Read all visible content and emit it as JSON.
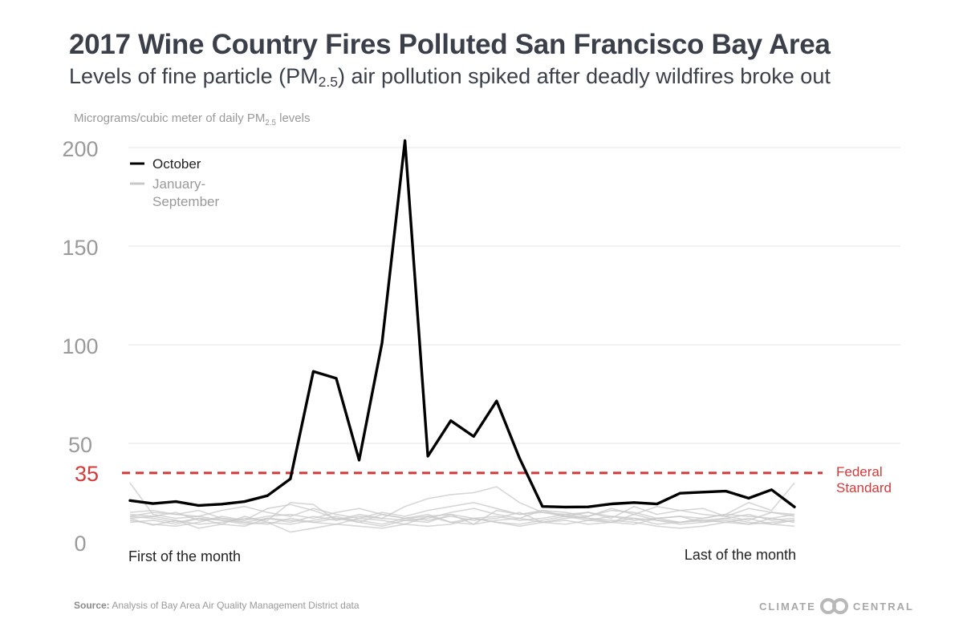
{
  "header": {
    "title": "2017 Wine Country Fires Polluted San Francisco Bay Area",
    "subtitle_pre": "Levels of fine particle (PM",
    "subtitle_sub": "2.5",
    "subtitle_post": ") air pollution spiked after deadly wildfires broke out"
  },
  "unit_label": {
    "pre": "Micrograms/cubic meter of daily PM",
    "sub": "2.5",
    "post": " levels"
  },
  "footer": {
    "source_label": "Source:",
    "source_text": "Analysis of Bay Area Air Quality Management District data",
    "logo_left": "CLIMATE",
    "logo_right": "CENTRAL"
  },
  "chart_data": {
    "type": "line",
    "ylim": [
      0,
      205
    ],
    "y_ticks": [
      0,
      50,
      100,
      150,
      200
    ],
    "x_labels": {
      "start": "First of the month",
      "end": "Last of the month"
    },
    "grid": true,
    "legend_position": "top-left",
    "colors": {
      "october": "#000000",
      "background_months": "#c8c8c8",
      "standard": "#d23a3a",
      "axis_text": "#9a9a9a"
    },
    "reference_line": {
      "value": 35,
      "label": "35",
      "text_line1": "Federal",
      "text_line2": "Standard"
    },
    "series": [
      {
        "name": "October",
        "values": [
          21,
          19.5,
          20.5,
          18.5,
          19.2,
          20.5,
          23.5,
          32,
          86.5,
          83,
          41.5,
          101,
          203.5,
          43.5,
          61.5,
          53.5,
          71.5,
          42.5,
          18,
          17.7,
          17.8,
          19.3,
          20,
          19.3,
          24.7,
          25.3,
          25.8,
          22.2,
          26.5,
          17.8
        ]
      },
      {
        "name": "January-September",
        "values": [
          12,
          8.5,
          11,
          7,
          9,
          13,
          10,
          9,
          11,
          13,
          10,
          8,
          11,
          10,
          14,
          9,
          16,
          14,
          15,
          14,
          12,
          11,
          10,
          8,
          7,
          8,
          10,
          12,
          9,
          8
        ]
      },
      {
        "name": "",
        "values": [
          14,
          13,
          15,
          11,
          12,
          10,
          9,
          12,
          10,
          9,
          12,
          11,
          9,
          13,
          10,
          12,
          10,
          9,
          11,
          13,
          12,
          10,
          14,
          11,
          9,
          10,
          11,
          9,
          12,
          10
        ]
      },
      {
        "name": "",
        "values": [
          15,
          16,
          14,
          13,
          16,
          18,
          15,
          13,
          17,
          14,
          12,
          15,
          13,
          16,
          18,
          20,
          17,
          14,
          16,
          13,
          15,
          12,
          18,
          14,
          16,
          17,
          13,
          11,
          15,
          14
        ]
      },
      {
        "name": "",
        "values": [
          11,
          9,
          8,
          10,
          13,
          11,
          17,
          19,
          16,
          12,
          10,
          14,
          12,
          11,
          13,
          11,
          12,
          15,
          10,
          12,
          13,
          16,
          15,
          12,
          10,
          11,
          12,
          10,
          9,
          11
        ]
      },
      {
        "name": "",
        "values": [
          13,
          12,
          10,
          12,
          9,
          8,
          12,
          10,
          13,
          11,
          14,
          12,
          18,
          22,
          24,
          25,
          28,
          20,
          15,
          13,
          11,
          13,
          12,
          11,
          10,
          12,
          14,
          20,
          16,
          30
        ]
      },
      {
        "name": "",
        "values": [
          30,
          14,
          12,
          13,
          11,
          9,
          10,
          5,
          7,
          9,
          8,
          7,
          9,
          8,
          9,
          12,
          10,
          8,
          10,
          9,
          11,
          10,
          9,
          12,
          13,
          10,
          12,
          14,
          11,
          12
        ]
      },
      {
        "name": "",
        "values": [
          12,
          13,
          11,
          9,
          10,
          12,
          11,
          20,
          19,
          11,
          13,
          12,
          11,
          12,
          15,
          17,
          14,
          12,
          16,
          15,
          13,
          17,
          14,
          18,
          16,
          14,
          13,
          17,
          15,
          13
        ]
      },
      {
        "name": "",
        "values": [
          10,
          11,
          9,
          12,
          11,
          10,
          12,
          11,
          10,
          12,
          11,
          9,
          12,
          14,
          10,
          9,
          11,
          12,
          10,
          11,
          9,
          10,
          12,
          9,
          10,
          11,
          10,
          9,
          10,
          11
        ]
      },
      {
        "name": "",
        "values": [
          13,
          15,
          14,
          16,
          12,
          11,
          13,
          14,
          12,
          15,
          17,
          14,
          12,
          13,
          14,
          12,
          13,
          11,
          12,
          14,
          15,
          13,
          11,
          12,
          13,
          12,
          14,
          13,
          12,
          14
        ]
      }
    ]
  }
}
